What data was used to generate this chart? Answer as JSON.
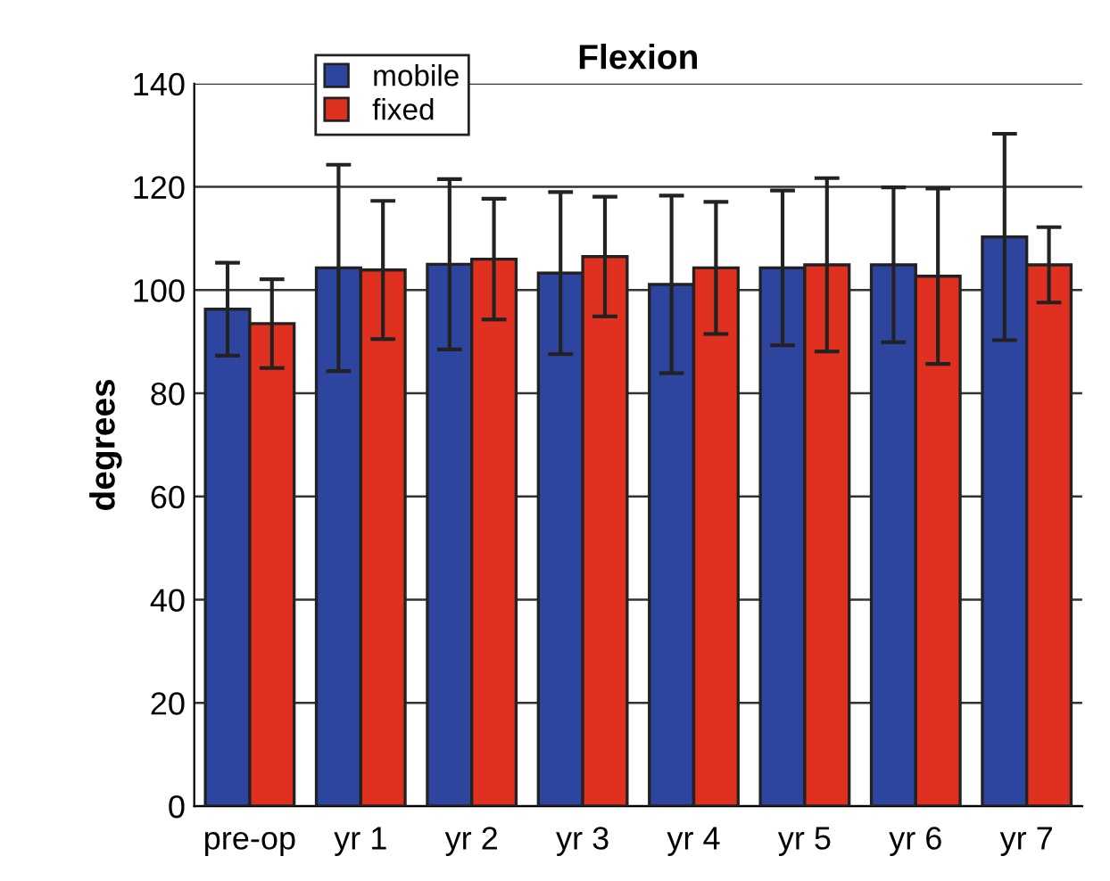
{
  "chart_data": {
    "type": "bar",
    "title": "Flexion",
    "ylabel": "degrees",
    "categories": [
      "pre-op",
      "yr 1",
      "yr 2",
      "yr 3",
      "yr 4",
      "yr 5",
      "yr 6",
      "yr 7"
    ],
    "series": [
      {
        "name": "mobile",
        "color": "#2e45a0",
        "values": [
          96.3,
          104.3,
          105.0,
          103.3,
          101.1,
          104.3,
          104.9,
          110.3
        ],
        "errors": [
          9,
          20,
          16.5,
          15.7,
          17.2,
          15,
          15,
          20
        ]
      },
      {
        "name": "fixed",
        "color": "#e03020",
        "values": [
          93.5,
          103.9,
          106.0,
          106.5,
          104.3,
          104.9,
          102.7,
          104.9
        ],
        "errors": [
          8.6,
          13.4,
          11.7,
          11.6,
          12.8,
          16.8,
          17,
          7.3
        ]
      }
    ],
    "ylim": [
      0,
      140
    ],
    "yticks": [
      0,
      20,
      40,
      60,
      80,
      100,
      120,
      140
    ],
    "grid": "y",
    "legend": "top left"
  }
}
